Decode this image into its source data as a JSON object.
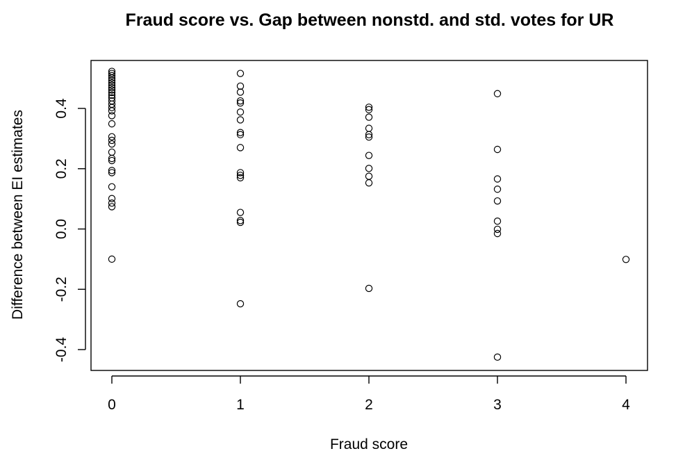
{
  "chart_data": {
    "type": "scatter",
    "title": "Fraud score vs. Gap between nonstd. and std. votes for UR",
    "xlabel": "Fraud score",
    "ylabel": "Difference between EI estimates",
    "xlim": [
      0,
      4
    ],
    "ylim": [
      -0.45,
      0.53
    ],
    "x_ticks": [
      0,
      1,
      2,
      3,
      4
    ],
    "y_ticks": [
      -0.4,
      -0.2,
      0.0,
      0.2,
      0.4
    ],
    "x_tick_labels": [
      "0",
      "1",
      "2",
      "3",
      "4"
    ],
    "y_tick_labels": [
      "-0.4",
      "-0.2",
      "0.0",
      "0.2",
      "0.4"
    ],
    "grid": false,
    "legend": "none",
    "marker": "open-circle",
    "series": [
      {
        "points": [
          {
            "x": 0,
            "y": 0.523
          },
          {
            "x": 0,
            "y": 0.516
          },
          {
            "x": 0,
            "y": 0.509
          },
          {
            "x": 0,
            "y": 0.501
          },
          {
            "x": 0,
            "y": 0.493
          },
          {
            "x": 0,
            "y": 0.485
          },
          {
            "x": 0,
            "y": 0.477
          },
          {
            "x": 0,
            "y": 0.469
          },
          {
            "x": 0,
            "y": 0.461
          },
          {
            "x": 0,
            "y": 0.453
          },
          {
            "x": 0,
            "y": 0.444
          },
          {
            "x": 0,
            "y": 0.435
          },
          {
            "x": 0,
            "y": 0.425
          },
          {
            "x": 0,
            "y": 0.414
          },
          {
            "x": 0,
            "y": 0.403
          },
          {
            "x": 0,
            "y": 0.392
          },
          {
            "x": 0,
            "y": 0.376
          },
          {
            "x": 0,
            "y": 0.349
          },
          {
            "x": 0,
            "y": 0.306
          },
          {
            "x": 0,
            "y": 0.294
          },
          {
            "x": 0,
            "y": 0.282
          },
          {
            "x": 0,
            "y": 0.255
          },
          {
            "x": 0,
            "y": 0.234
          },
          {
            "x": 0,
            "y": 0.227
          },
          {
            "x": 0,
            "y": 0.194
          },
          {
            "x": 0,
            "y": 0.187
          },
          {
            "x": 0,
            "y": 0.14
          },
          {
            "x": 0,
            "y": 0.101
          },
          {
            "x": 0,
            "y": 0.086
          },
          {
            "x": 0,
            "y": 0.074
          },
          {
            "x": 0,
            "y": -0.1
          },
          {
            "x": 1,
            "y": 0.516
          },
          {
            "x": 1,
            "y": 0.474
          },
          {
            "x": 1,
            "y": 0.454
          },
          {
            "x": 1,
            "y": 0.425
          },
          {
            "x": 1,
            "y": 0.418
          },
          {
            "x": 1,
            "y": 0.388
          },
          {
            "x": 1,
            "y": 0.362
          },
          {
            "x": 1,
            "y": 0.32
          },
          {
            "x": 1,
            "y": 0.313
          },
          {
            "x": 1,
            "y": 0.27
          },
          {
            "x": 1,
            "y": 0.187
          },
          {
            "x": 1,
            "y": 0.178
          },
          {
            "x": 1,
            "y": 0.17
          },
          {
            "x": 1,
            "y": 0.055
          },
          {
            "x": 1,
            "y": 0.028
          },
          {
            "x": 1,
            "y": 0.022
          },
          {
            "x": 1,
            "y": -0.248
          },
          {
            "x": 2,
            "y": 0.404
          },
          {
            "x": 2,
            "y": 0.396
          },
          {
            "x": 2,
            "y": 0.371
          },
          {
            "x": 2,
            "y": 0.334
          },
          {
            "x": 2,
            "y": 0.313
          },
          {
            "x": 2,
            "y": 0.305
          },
          {
            "x": 2,
            "y": 0.244
          },
          {
            "x": 2,
            "y": 0.201
          },
          {
            "x": 2,
            "y": 0.175
          },
          {
            "x": 2,
            "y": 0.153
          },
          {
            "x": 2,
            "y": -0.197
          },
          {
            "x": 3,
            "y": 0.449
          },
          {
            "x": 3,
            "y": 0.264
          },
          {
            "x": 3,
            "y": 0.166
          },
          {
            "x": 3,
            "y": 0.132
          },
          {
            "x": 3,
            "y": 0.093
          },
          {
            "x": 3,
            "y": 0.026
          },
          {
            "x": 3,
            "y": -0.001
          },
          {
            "x": 3,
            "y": -0.015
          },
          {
            "x": 3,
            "y": -0.425
          },
          {
            "x": 4,
            "y": -0.101
          }
        ]
      }
    ]
  }
}
